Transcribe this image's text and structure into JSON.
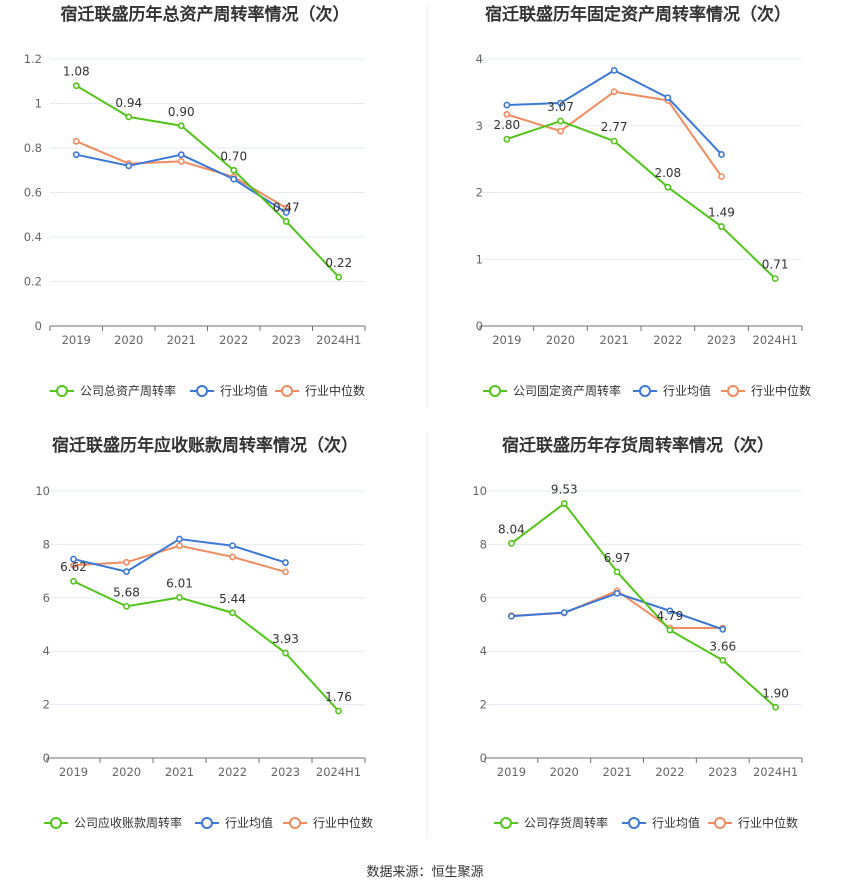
{
  "colors": {
    "company": "#52c41a",
    "average": "#3c78d8",
    "median": "#f08c60",
    "grid": "#e6ebf2",
    "axis": "#6e7079"
  },
  "legend_labels": [
    "",
    "行业均值",
    "行业中位数"
  ],
  "source": "数据来源：恒生聚源",
  "chart_data": [
    {
      "type": "line",
      "title": "宿迁联盛历年总资产周转率情况（次）",
      "categories": [
        "2019",
        "2020",
        "2021",
        "2022",
        "2023",
        "2024H1"
      ],
      "ylim": [
        0,
        1.2
      ],
      "yticks": [
        "0",
        "0.2",
        "0.4",
        "0.6",
        "0.8",
        "1",
        "1.2"
      ],
      "series": [
        {
          "name": "公司总资产周转率",
          "values": [
            1.08,
            0.94,
            0.9,
            0.7,
            0.47,
            0.22
          ],
          "labels": [
            "1.08",
            "0.94",
            "0.90",
            "0.70",
            "0.47",
            "0.22"
          ]
        },
        {
          "name": "行业均值",
          "values": [
            0.77,
            0.72,
            0.77,
            0.66,
            0.51,
            null
          ]
        },
        {
          "name": "行业中位数",
          "values": [
            0.83,
            0.73,
            0.74,
            0.67,
            0.53,
            null
          ]
        }
      ]
    },
    {
      "type": "line",
      "title": "宿迁联盛历年固定资产周转率情况（次）",
      "categories": [
        "2019",
        "2020",
        "2021",
        "2022",
        "2023",
        "2024H1"
      ],
      "ylim": [
        0,
        4
      ],
      "yticks": [
        "0",
        "1",
        "2",
        "3",
        "4"
      ],
      "series": [
        {
          "name": "公司固定资产周转率",
          "values": [
            2.8,
            3.07,
            2.77,
            2.08,
            1.49,
            0.71
          ],
          "labels": [
            "2.80",
            "3.07",
            "2.77",
            "2.08",
            "1.49",
            "0.71"
          ]
        },
        {
          "name": "行业均值",
          "values": [
            3.31,
            3.34,
            3.83,
            3.42,
            2.57,
            null
          ]
        },
        {
          "name": "行业中位数",
          "values": [
            3.17,
            2.92,
            3.51,
            3.38,
            2.24,
            null
          ]
        }
      ]
    },
    {
      "type": "line",
      "title": "宿迁联盛历年应收账款周转率情况（次）",
      "categories": [
        "2019",
        "2020",
        "2021",
        "2022",
        "2023",
        "2024H1"
      ],
      "ylim": [
        0,
        10
      ],
      "yticks": [
        "0",
        "2",
        "4",
        "6",
        "8",
        "10"
      ],
      "series": [
        {
          "name": "公司应收账款周转率",
          "values": [
            6.62,
            5.68,
            6.01,
            5.44,
            3.93,
            1.76
          ],
          "labels": [
            "6.62",
            "5.68",
            "6.01",
            "5.44",
            "3.93",
            "1.76"
          ]
        },
        {
          "name": "行业均值",
          "values": [
            7.45,
            6.98,
            8.2,
            7.95,
            7.32,
            null
          ]
        },
        {
          "name": "行业中位数",
          "values": [
            7.22,
            7.33,
            7.95,
            7.53,
            6.97,
            null
          ]
        }
      ]
    },
    {
      "type": "line",
      "title": "宿迁联盛历年存货周转率情况（次）",
      "categories": [
        "2019",
        "2020",
        "2021",
        "2022",
        "2023",
        "2024H1"
      ],
      "ylim": [
        0,
        10
      ],
      "yticks": [
        "0",
        "2",
        "4",
        "6",
        "8",
        "10"
      ],
      "series": [
        {
          "name": "公司存货周转率",
          "values": [
            8.04,
            9.53,
            6.97,
            4.79,
            3.66,
            1.9
          ],
          "labels": [
            "8.04",
            "9.53",
            "6.97",
            "4.79",
            "3.66",
            "1.90"
          ]
        },
        {
          "name": "行业均值",
          "values": [
            5.31,
            5.45,
            6.17,
            5.51,
            4.82,
            null
          ]
        },
        {
          "name": "行业中位数",
          "values": [
            5.33,
            5.43,
            6.26,
            4.87,
            4.87,
            null
          ]
        }
      ]
    }
  ]
}
